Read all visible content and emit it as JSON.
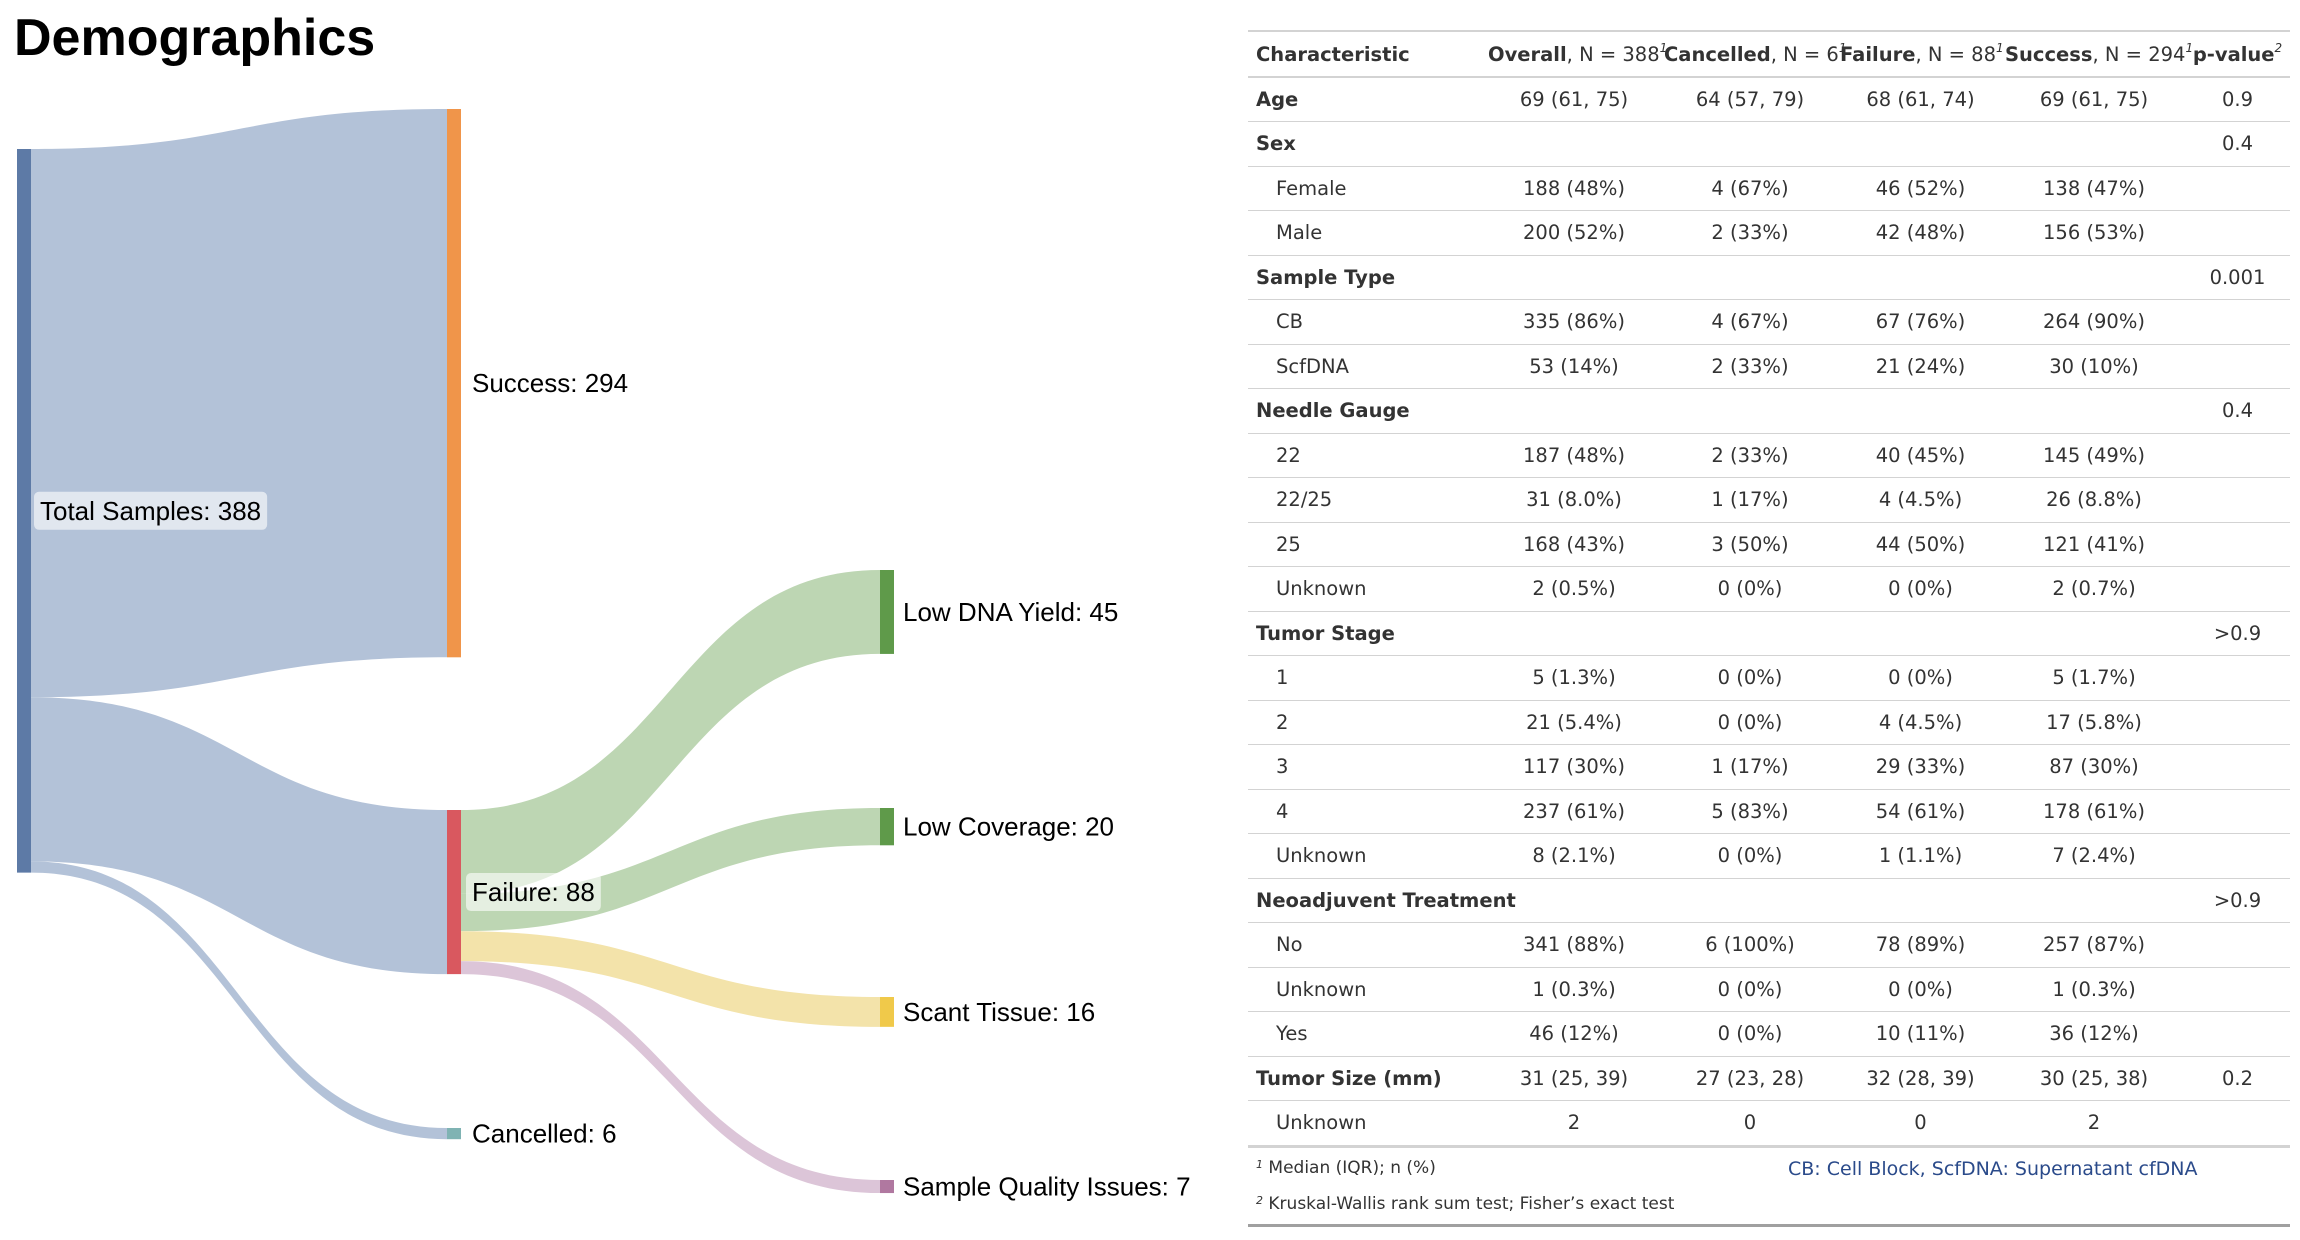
{
  "title": "Demographics",
  "sankey": {
    "nodes": [
      {
        "id": "total",
        "label": "Total Samples: 388",
        "value": 388,
        "color": "#5d7aa6"
      },
      {
        "id": "success",
        "label": "Success: 294",
        "value": 294,
        "color": "#f0954a"
      },
      {
        "id": "failure",
        "label": "Failure: 88",
        "value": 88,
        "color": "#d9585f"
      },
      {
        "id": "cancelled",
        "label": "Cancelled: 6",
        "value": 6,
        "color": "#7fb3b3"
      },
      {
        "id": "lowdna",
        "label": "Low DNA Yield: 45",
        "value": 45,
        "color": "#5f9a4a"
      },
      {
        "id": "lowcov",
        "label": "Low Coverage: 20",
        "value": 20,
        "color": "#5f9a4a"
      },
      {
        "id": "scant",
        "label": "Scant Tissue: 16",
        "value": 16,
        "color": "#f0c94a"
      },
      {
        "id": "quality",
        "label": "Sample Quality Issues: 7",
        "value": 7,
        "color": "#b078a0"
      }
    ],
    "links": [
      {
        "source": "total",
        "target": "success",
        "value": 294,
        "color": "#b3c2d8"
      },
      {
        "source": "total",
        "target": "failure",
        "value": 88,
        "color": "#b3c2d8"
      },
      {
        "source": "total",
        "target": "cancelled",
        "value": 6,
        "color": "#b3c2d8"
      },
      {
        "source": "failure",
        "target": "lowdna",
        "value": 45,
        "color": "#bdd6b3"
      },
      {
        "source": "failure",
        "target": "lowcov",
        "value": 20,
        "color": "#bdd6b3"
      },
      {
        "source": "failure",
        "target": "scant",
        "value": 16,
        "color": "#f3e3aa"
      },
      {
        "source": "failure",
        "target": "quality",
        "value": 7,
        "color": "#dcc5d8"
      }
    ]
  },
  "table": {
    "headers": [
      {
        "bold": "Characteristic",
        "rest": "",
        "sup": ""
      },
      {
        "bold": "Overall",
        "rest": ", N = 388",
        "sup": "1"
      },
      {
        "bold": "Cancelled",
        "rest": ", N = 6",
        "sup": "1"
      },
      {
        "bold": "Failure",
        "rest": ", N = 88",
        "sup": "1"
      },
      {
        "bold": "Success",
        "rest": ", N = 294",
        "sup": "1"
      },
      {
        "bold": "p-value",
        "rest": "",
        "sup": "2"
      }
    ],
    "rows": [
      {
        "label": "Age",
        "type": "group",
        "cells": [
          "69 (61, 75)",
          "64 (57, 79)",
          "68 (61, 74)",
          "69 (61, 75)",
          "0.9"
        ]
      },
      {
        "label": "Sex",
        "type": "group",
        "cells": [
          "",
          "",
          "",
          "",
          "0.4"
        ]
      },
      {
        "label": "Female",
        "type": "level",
        "cells": [
          "188 (48%)",
          "4 (67%)",
          "46 (52%)",
          "138 (47%)",
          ""
        ]
      },
      {
        "label": "Male",
        "type": "level",
        "cells": [
          "200 (52%)",
          "2 (33%)",
          "42 (48%)",
          "156 (53%)",
          ""
        ]
      },
      {
        "label": "Sample Type",
        "type": "group",
        "cells": [
          "",
          "",
          "",
          "",
          "0.001"
        ]
      },
      {
        "label": "CB",
        "type": "level",
        "cells": [
          "335 (86%)",
          "4 (67%)",
          "67 (76%)",
          "264 (90%)",
          ""
        ]
      },
      {
        "label": "ScfDNA",
        "type": "level",
        "cells": [
          "53 (14%)",
          "2 (33%)",
          "21 (24%)",
          "30 (10%)",
          ""
        ]
      },
      {
        "label": "Needle Gauge",
        "type": "group",
        "cells": [
          "",
          "",
          "",
          "",
          "0.4"
        ]
      },
      {
        "label": "22",
        "type": "level",
        "cells": [
          "187 (48%)",
          "2 (33%)",
          "40 (45%)",
          "145 (49%)",
          ""
        ]
      },
      {
        "label": "22/25",
        "type": "level",
        "cells": [
          "31 (8.0%)",
          "1 (17%)",
          "4 (4.5%)",
          "26 (8.8%)",
          ""
        ]
      },
      {
        "label": "25",
        "type": "level",
        "cells": [
          "168 (43%)",
          "3 (50%)",
          "44 (50%)",
          "121 (41%)",
          ""
        ]
      },
      {
        "label": "Unknown",
        "type": "level",
        "cells": [
          "2 (0.5%)",
          "0 (0%)",
          "0 (0%)",
          "2 (0.7%)",
          ""
        ]
      },
      {
        "label": "Tumor Stage",
        "type": "group",
        "cells": [
          "",
          "",
          "",
          "",
          ">0.9"
        ]
      },
      {
        "label": "1",
        "type": "level",
        "cells": [
          "5 (1.3%)",
          "0 (0%)",
          "0 (0%)",
          "5 (1.7%)",
          ""
        ]
      },
      {
        "label": "2",
        "type": "level",
        "cells": [
          "21 (5.4%)",
          "0 (0%)",
          "4 (4.5%)",
          "17 (5.8%)",
          ""
        ]
      },
      {
        "label": "3",
        "type": "level",
        "cells": [
          "117 (30%)",
          "1 (17%)",
          "29 (33%)",
          "87 (30%)",
          ""
        ]
      },
      {
        "label": "4",
        "type": "level",
        "cells": [
          "237 (61%)",
          "5 (83%)",
          "54 (61%)",
          "178 (61%)",
          ""
        ]
      },
      {
        "label": "Unknown",
        "type": "level",
        "cells": [
          "8 (2.1%)",
          "0 (0%)",
          "1 (1.1%)",
          "7 (2.4%)",
          ""
        ]
      },
      {
        "label": "Neoadjuvent Treatment",
        "type": "group",
        "cells": [
          "",
          "",
          "",
          "",
          ">0.9"
        ]
      },
      {
        "label": "No",
        "type": "level",
        "cells": [
          "341 (88%)",
          "6 (100%)",
          "78 (89%)",
          "257 (87%)",
          ""
        ]
      },
      {
        "label": "Unknown",
        "type": "level",
        "cells": [
          "1 (0.3%)",
          "0 (0%)",
          "0 (0%)",
          "1 (0.3%)",
          ""
        ]
      },
      {
        "label": "Yes",
        "type": "level",
        "cells": [
          "46 (12%)",
          "0 (0%)",
          "10 (11%)",
          "36 (12%)",
          ""
        ]
      },
      {
        "label": "Tumor Size (mm)",
        "type": "group",
        "cells": [
          "31 (25, 39)",
          "27 (23, 28)",
          "32 (28, 39)",
          "30 (25, 38)",
          "0.2"
        ]
      },
      {
        "label": "Unknown",
        "type": "level",
        "cells": [
          "2",
          "0",
          "0",
          "2",
          ""
        ]
      }
    ],
    "footnotes": {
      "fn1_mark": "1",
      "fn1_text": "Median (IQR); n (%)",
      "fn2_mark": "2",
      "fn2_text": "Kruskal-Wallis rank sum test; Fisher’s exact test",
      "abbreviations": "CB: Cell Block, ScfDNA: Supernatant cfDNA"
    }
  }
}
